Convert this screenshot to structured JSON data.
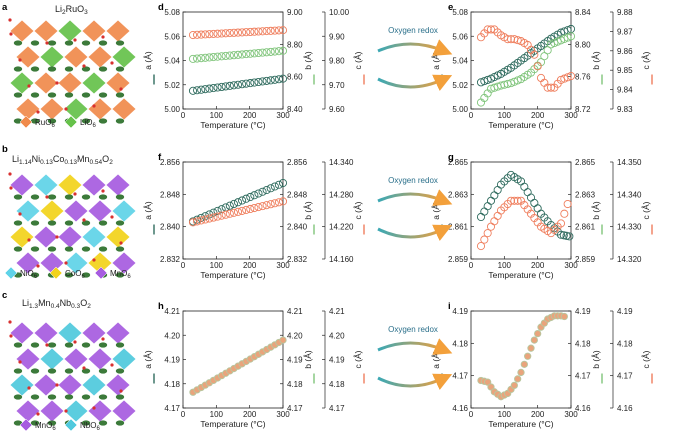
{
  "panels": {
    "a": {
      "label": "a",
      "formula_main": "Li",
      "formula_sub": "2",
      "formula_main2": "RuO",
      "formula_sub2": "3",
      "legend": [
        {
          "name": "RuO",
          "sub": "6",
          "color": "#f08a4b"
        },
        {
          "name": "LiO",
          "sub": "6",
          "color": "#66c24a"
        }
      ]
    },
    "b": {
      "label": "b",
      "formula_parts": [
        [
          "Li",
          ""
        ],
        [
          "1.14",
          "sub"
        ],
        [
          "Ni",
          ""
        ],
        [
          "0.13",
          "sub"
        ],
        [
          "Co",
          ""
        ],
        [
          "0.13",
          "sub"
        ],
        [
          "Mn",
          ""
        ],
        [
          "0.54",
          "sub"
        ],
        [
          "O",
          ""
        ],
        [
          "2",
          "sub"
        ]
      ],
      "legend": [
        {
          "name": "NiO",
          "sub": "6",
          "color": "#5fd3e8"
        },
        {
          "name": "CoO",
          "sub": "6",
          "color": "#f2d31b"
        },
        {
          "name": "MnO",
          "sub": "6",
          "color": "#a75ce0"
        }
      ]
    },
    "c": {
      "label": "c",
      "formula_parts": [
        [
          "Li",
          ""
        ],
        [
          "1.3",
          "sub"
        ],
        [
          "Mn",
          ""
        ],
        [
          "0.4",
          "sub"
        ],
        [
          "Nb",
          ""
        ],
        [
          "0.3",
          "sub"
        ],
        [
          "O",
          ""
        ],
        [
          "2",
          "sub"
        ]
      ],
      "legend": [
        {
          "name": "MnO",
          "sub": "6",
          "color": "#a75ce0"
        },
        {
          "name": "NbO",
          "sub": "6",
          "color": "#4fc9dd"
        }
      ]
    },
    "redox_label": "Oxygen redox",
    "xlabel": "Temperature (°C)"
  },
  "colors": {
    "a_series": "#2f6b5e",
    "b_series": "#7fc47a",
    "c_series": "#ef7e5d",
    "arrow_start": "#3aa8b5",
    "arrow_end": "#f3a03b"
  },
  "chart_data": [
    {
      "panel": "d",
      "type": "scatter",
      "x_range": [
        0,
        300
      ],
      "xticks": [
        0,
        100,
        200,
        300
      ],
      "axes": [
        {
          "label": "a (Å)",
          "ticks": [
            "5.00",
            "5.02",
            "5.04",
            "5.06",
            "5.08"
          ],
          "range": [
            5.0,
            5.08
          ]
        },
        {
          "label": "b (Å)",
          "ticks": [
            "8.40",
            "8.60",
            "8.80",
            "9.00"
          ],
          "range": [
            8.4,
            9.0
          ]
        },
        {
          "label": "c (Å)",
          "ticks": [
            "9.60",
            "9.70",
            "9.80",
            "9.90",
            "10.00"
          ],
          "range": [
            9.6,
            10.0
          ]
        }
      ],
      "series": [
        {
          "axis": 0,
          "x_from": 30,
          "x_to": 300,
          "y": [
            5.015,
            5.025
          ]
        },
        {
          "axis": 1,
          "x_from": 30,
          "x_to": 300,
          "y": [
            8.71,
            8.76
          ]
        },
        {
          "axis": 2,
          "x_from": 30,
          "x_to": 300,
          "y": [
            9.905,
            9.925
          ]
        }
      ]
    },
    {
      "panel": "e",
      "type": "scatter",
      "x_range": [
        0,
        300
      ],
      "xticks": [
        0,
        100,
        200,
        300
      ],
      "axes": [
        {
          "label": "a (Å)",
          "ticks": [
            "5.00",
            "5.02",
            "5.04",
            "5.06",
            "5.08"
          ],
          "range": [
            5.0,
            5.08
          ]
        },
        {
          "label": "b (Å)",
          "ticks": [
            "8.72",
            "8.76",
            "8.80",
            "8.84"
          ],
          "range": [
            8.72,
            8.84
          ]
        },
        {
          "label": "c (Å)",
          "ticks": [
            "9.83",
            "9.84",
            "9.85",
            "9.86",
            "9.87",
            "9.88"
          ],
          "range": [
            9.83,
            9.88
          ]
        }
      ],
      "series": [
        {
          "axis": 0,
          "points": [
            [
              30,
              5.022
            ],
            [
              60,
              5.025
            ],
            [
              90,
              5.029
            ],
            [
              120,
              5.034
            ],
            [
              150,
              5.04
            ],
            [
              180,
              5.046
            ],
            [
              210,
              5.052
            ],
            [
              240,
              5.058
            ],
            [
              270,
              5.063
            ],
            [
              300,
              5.066
            ]
          ]
        },
        {
          "axis": 1,
          "points": [
            [
              30,
              8.728
            ],
            [
              60,
              8.745
            ],
            [
              90,
              8.749
            ],
            [
              120,
              8.752
            ],
            [
              150,
              8.757
            ],
            [
              180,
              8.765
            ],
            [
              210,
              8.778
            ],
            [
              240,
              8.8
            ],
            [
              270,
              8.805
            ],
            [
              300,
              8.81
            ]
          ]
        },
        {
          "axis": 2,
          "points": [
            [
              30,
              9.867
            ],
            [
              50,
              9.871
            ],
            [
              70,
              9.871
            ],
            [
              90,
              9.868
            ],
            [
              110,
              9.866
            ],
            [
              130,
              9.866
            ],
            [
              150,
              9.865
            ],
            [
              170,
              9.863
            ],
            [
              190,
              9.858
            ],
            [
              210,
              9.846
            ],
            [
              230,
              9.841
            ],
            [
              250,
              9.841
            ],
            [
              270,
              9.845
            ],
            [
              300,
              9.847
            ]
          ]
        }
      ]
    },
    {
      "panel": "f",
      "type": "scatter",
      "x_range": [
        0,
        300
      ],
      "xticks": [
        0,
        100,
        200,
        300
      ],
      "axes": [
        {
          "label": "a (Å)",
          "ticks": [
            "2.832",
            "2.840",
            "2.848",
            "2.856"
          ],
          "range": [
            2.832,
            2.856
          ]
        },
        {
          "label": "b (Å)",
          "ticks": [
            "2.832",
            "2.840",
            "2.848",
            "2.856"
          ],
          "range": [
            2.832,
            2.856
          ]
        },
        {
          "label": "c (Å)",
          "ticks": [
            "14.160",
            "14.220",
            "14.280",
            "14.340"
          ],
          "range": [
            14.16,
            14.34
          ]
        }
      ],
      "series": [
        {
          "axis": 0,
          "x_from": 30,
          "x_to": 300,
          "y": [
            2.8413,
            2.8508
          ]
        },
        {
          "axis": 2,
          "x_from": 30,
          "x_to": 300,
          "y": [
            14.228,
            14.267
          ]
        }
      ]
    },
    {
      "panel": "g",
      "type": "scatter",
      "x_range": [
        0,
        300
      ],
      "xticks": [
        0,
        100,
        200,
        300
      ],
      "axes": [
        {
          "label": "a (Å)",
          "ticks": [
            "2.859",
            "2.861",
            "2.863",
            "2.865"
          ],
          "range": [
            2.859,
            2.865
          ]
        },
        {
          "label": "b (Å)",
          "ticks": [
            "2.859",
            "2.861",
            "2.863",
            "2.865"
          ],
          "range": [
            2.859,
            2.865
          ]
        },
        {
          "label": "c (Å)",
          "ticks": [
            "14.320",
            "14.330",
            "14.340",
            "14.350"
          ],
          "range": [
            14.32,
            14.35
          ]
        }
      ],
      "series": [
        {
          "axis": 0,
          "points": [
            [
              30,
              2.8616
            ],
            [
              60,
              2.8626
            ],
            [
              90,
              2.8636
            ],
            [
              120,
              2.8642
            ],
            [
              150,
              2.8638
            ],
            [
              180,
              2.8628
            ],
            [
              210,
              2.8618
            ],
            [
              240,
              2.8611
            ],
            [
              270,
              2.8605
            ],
            [
              295,
              2.8604
            ]
          ]
        },
        {
          "axis": 2,
          "points": [
            [
              30,
              14.324
            ],
            [
              60,
              14.33
            ],
            [
              90,
              14.335
            ],
            [
              120,
              14.338
            ],
            [
              150,
              14.338
            ],
            [
              180,
              14.334
            ],
            [
              210,
              14.33
            ],
            [
              240,
              14.328
            ],
            [
              270,
              14.331
            ],
            [
              290,
              14.337
            ]
          ]
        }
      ]
    },
    {
      "panel": "h",
      "type": "scatter",
      "x_range": [
        0,
        300
      ],
      "xticks": [
        0,
        100,
        200,
        300
      ],
      "axes": [
        {
          "label": "a (Å)",
          "ticks": [
            "4.17",
            "4.18",
            "4.19",
            "4.20",
            "4.21"
          ],
          "range": [
            4.17,
            4.21
          ]
        },
        {
          "label": "b (Å)",
          "ticks": [
            "4.17",
            "4.18",
            "4.19",
            "4.20",
            "4.21"
          ],
          "range": [
            4.17,
            4.21
          ]
        },
        {
          "label": "c (Å)",
          "ticks": [
            "4.17",
            "4.18",
            "4.19",
            "4.20",
            "4.21"
          ],
          "range": [
            4.17,
            4.21
          ]
        }
      ],
      "series": [
        {
          "axis": 0,
          "x_from": 30,
          "x_to": 300,
          "y": [
            4.1765,
            4.198
          ]
        }
      ]
    },
    {
      "panel": "i",
      "type": "scatter",
      "x_range": [
        0,
        300
      ],
      "xticks": [
        0,
        100,
        200,
        300
      ],
      "axes": [
        {
          "label": "a (Å)",
          "ticks": [
            "4.16",
            "4.17",
            "4.18",
            "4.19"
          ],
          "range": [
            4.16,
            4.19
          ]
        },
        {
          "label": "b (Å)",
          "ticks": [
            "4.16",
            "4.17",
            "4.18",
            "4.19"
          ],
          "range": [
            4.16,
            4.19
          ]
        },
        {
          "label": "c (Å)",
          "ticks": [
            "4.16",
            "4.17",
            "4.18",
            "4.19"
          ],
          "range": [
            4.16,
            4.19
          ]
        }
      ],
      "series": [
        {
          "axis": 0,
          "points": [
            [
              30,
              4.1685
            ],
            [
              50,
              4.168
            ],
            [
              70,
              4.165
            ],
            [
              90,
              4.1635
            ],
            [
              110,
              4.1645
            ],
            [
              130,
              4.167
            ],
            [
              150,
              4.171
            ],
            [
              170,
              4.176
            ],
            [
              190,
              4.181
            ],
            [
              210,
              4.185
            ],
            [
              230,
              4.1875
            ],
            [
              250,
              4.1885
            ],
            [
              270,
              4.1885
            ],
            [
              280,
              4.1883
            ]
          ]
        }
      ]
    }
  ]
}
